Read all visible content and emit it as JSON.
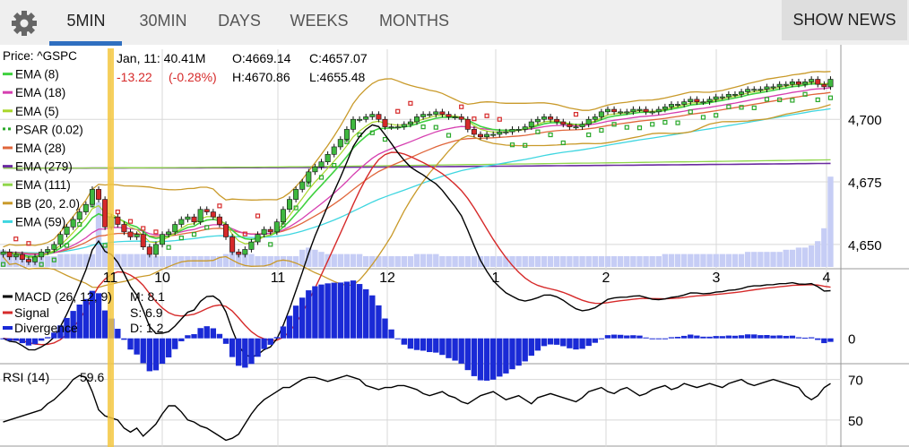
{
  "tabs": [
    {
      "label": "5MIN",
      "active": true
    },
    {
      "label": "30MIN"
    },
    {
      "label": "DAYS"
    },
    {
      "label": "WEEKS"
    },
    {
      "label": "MONTHS"
    }
  ],
  "show_news": "SHOW NEWS",
  "header": {
    "date_vol": "Jan, 11: 40.41M",
    "open": "O:4669.14",
    "close": "C:4657.07",
    "change": "-13.22",
    "change_pct": "(-0.28%)",
    "high": "H:4670.86",
    "low": "L:4655.48"
  },
  "legend": [
    {
      "label": "Price: ^GSPC",
      "color": "#000000",
      "kind": "text"
    },
    {
      "label": "EMA (8)",
      "color": "#3fd13f",
      "kind": "line"
    },
    {
      "label": "EMA (18)",
      "color": "#d63fb0",
      "kind": "line"
    },
    {
      "label": "EMA (5)",
      "color": "#a9d62a",
      "kind": "line"
    },
    {
      "label": "PSAR (0.02)",
      "color": "#2aa82a",
      "kind": "dots"
    },
    {
      "label": "EMA (28)",
      "color": "#e0663b",
      "kind": "line"
    },
    {
      "label": "EMA (279)",
      "color": "#6a2aa0",
      "kind": "line"
    },
    {
      "label": "EMA (111)",
      "color": "#8fd64a",
      "kind": "line"
    },
    {
      "label": "BB (20, 2.0)",
      "color": "#c99a2a",
      "kind": "line"
    },
    {
      "label": "EMA (59)",
      "color": "#3fd6e0",
      "kind": "line"
    }
  ],
  "macd_legend": [
    {
      "label": "MACD (26, 12, 9)",
      "color": "#000000",
      "value": "M: 8.1"
    },
    {
      "label": "Signal",
      "color": "#d62a2a",
      "value": "S: 6.9"
    },
    {
      "label": "Divergence",
      "color": "#1a2ad6",
      "value": "D: 1.2"
    }
  ],
  "rsi_legend": {
    "label": "RSI (14)",
    "value": "59.6"
  },
  "colors": {
    "up": "#3fb83f",
    "down": "#d62a2a",
    "volume": "#c6cdf5",
    "cursor": "#f5c842",
    "grid": "#d8d8d8"
  },
  "chart_data": {
    "type": "candlestick",
    "symbol": "^GSPC",
    "x_ticks": [
      "11",
      "10",
      "11",
      "12",
      "1",
      "2",
      "3",
      "4"
    ],
    "price_axis": {
      "ticks": [
        4650,
        4675,
        4700
      ],
      "range": [
        4641,
        4728
      ]
    },
    "closes": [
      4647,
      4645,
      4646,
      4644,
      4643,
      4645,
      4647,
      4648,
      4650,
      4654,
      4657,
      4660,
      4663,
      4666,
      4672,
      4668,
      4657,
      4661,
      4658,
      4655,
      4653,
      4654,
      4649,
      4646,
      4650,
      4654,
      4655,
      4658,
      4660,
      4661,
      4659,
      4664,
      4663,
      4661,
      4658,
      4653,
      4647,
      4646,
      4648,
      4651,
      4654,
      4656,
      4655,
      4659,
      4664,
      4668,
      4672,
      4675,
      4679,
      4681,
      4683,
      4686,
      4689,
      4692,
      4696,
      4700,
      4700,
      4701,
      4702,
      4700,
      4697,
      4697,
      4697,
      4698,
      4699,
      4701,
      4702,
      4702,
      4703,
      4702,
      4701,
      4701,
      4700,
      4696,
      4694,
      4693,
      4694,
      4694,
      4695,
      4695,
      4696,
      4696,
      4697,
      4699,
      4700,
      4701,
      4700,
      4699,
      4698,
      4697,
      4697,
      4698,
      4700,
      4701,
      4703,
      4704,
      4703,
      4703,
      4703,
      4704,
      4704,
      4703,
      4703,
      4704,
      4705,
      4706,
      4706,
      4707,
      4708,
      4707,
      4707,
      4708,
      4709,
      4709,
      4710,
      4710,
      4711,
      4712,
      4712,
      4712,
      4713,
      4713,
      4714,
      4714,
      4715,
      4714,
      4715,
      4716,
      4714,
      4713,
      4716
    ],
    "volume_range": [
      0,
      50
    ],
    "volume": [
      8,
      6,
      6,
      6,
      6,
      5,
      5,
      5,
      5,
      6,
      6,
      6,
      6,
      6,
      6,
      30,
      10,
      6,
      6,
      6,
      6,
      6,
      6,
      6,
      5,
      5,
      5,
      5,
      5,
      5,
      5,
      5,
      5,
      5,
      5,
      6,
      10,
      6,
      6,
      6,
      5,
      5,
      5,
      5,
      5,
      5,
      5,
      8,
      9,
      8,
      7,
      6,
      6,
      6,
      6,
      6,
      6,
      5,
      5,
      5,
      5,
      5,
      5,
      5,
      5,
      6,
      6,
      6,
      6,
      5,
      5,
      5,
      5,
      5,
      5,
      5,
      5,
      5,
      5,
      5,
      5,
      5,
      5,
      5,
      5,
      5,
      5,
      5,
      5,
      5,
      5,
      5,
      5,
      5,
      5,
      5,
      5,
      5,
      5,
      5,
      5,
      5,
      5,
      5,
      6,
      6,
      6,
      6,
      6,
      6,
      6,
      6,
      6,
      6,
      6,
      6,
      6,
      7,
      7,
      7,
      7,
      7,
      7,
      8,
      8,
      9,
      9,
      10,
      12,
      18,
      42
    ],
    "macd": {
      "axis_ticks": [
        0
      ],
      "range": [
        -4,
        10
      ],
      "M": 8.1,
      "S": 6.9,
      "D": 1.2
    },
    "rsi": {
      "axis_ticks": [
        50,
        70
      ],
      "range": [
        38,
        76
      ],
      "last": 59.6,
      "values": [
        49,
        50,
        51,
        52,
        53,
        54,
        55,
        58,
        60,
        63,
        66,
        70,
        72,
        71,
        64,
        55,
        52,
        51,
        50,
        46,
        44,
        46,
        42,
        45,
        48,
        53,
        57,
        57,
        54,
        50,
        49,
        47,
        46,
        44,
        42,
        40,
        41,
        43,
        48,
        53,
        57,
        60,
        62,
        64,
        66,
        66,
        68,
        70,
        71,
        71,
        70,
        69,
        70,
        71,
        72,
        71,
        70,
        67,
        66,
        65,
        66,
        66,
        67,
        67,
        66,
        65,
        63,
        62,
        63,
        64,
        62,
        61,
        59,
        58,
        60,
        62,
        63,
        64,
        62,
        60,
        61,
        62,
        60,
        58,
        61,
        62,
        63,
        62,
        61,
        60,
        59,
        61,
        64,
        65,
        66,
        64,
        63,
        65,
        66,
        64,
        62,
        63,
        65,
        66,
        67,
        65,
        66,
        68,
        67,
        66,
        67,
        68,
        67,
        66,
        68,
        69,
        70,
        68,
        67,
        68,
        69,
        70,
        69,
        68,
        67,
        66,
        62,
        60,
        62,
        66,
        68
      ]
    }
  }
}
